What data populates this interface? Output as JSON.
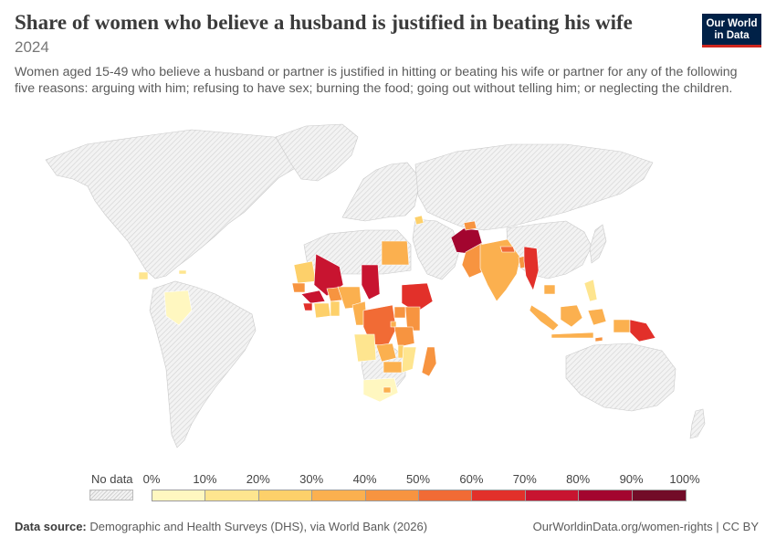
{
  "header": {
    "title": "Share of women who believe a husband is justified in beating his wife",
    "year": "2024",
    "subtitle": "Women aged 15-49 who believe a husband or partner is justified in hitting or beating his wife or partner for any of the following five reasons: arguing with him; refusing to have sex; burning the food; going out without telling him; or neglecting the children."
  },
  "logo": {
    "line1": "Our World",
    "line2": "in Data",
    "bg_color": "#002147",
    "accent_color": "#ce261e"
  },
  "legend": {
    "no_data_label": "No data",
    "ticks": [
      "0%",
      "10%",
      "20%",
      "30%",
      "40%",
      "50%",
      "60%",
      "70%",
      "80%",
      "90%",
      "100%"
    ],
    "colors": [
      "#fff7c0",
      "#fee58f",
      "#fdd06a",
      "#fbb04f",
      "#f79440",
      "#f16b35",
      "#e2302a",
      "#c81430",
      "#a3052f",
      "#720c28"
    ]
  },
  "footer": {
    "source_label": "Data source:",
    "source_text": "Demographic and Health Surveys (DHS), via World Bank (2026)",
    "right_text": "OurWorldinData.org/women-rights | CC BY"
  },
  "map_data": {
    "nodata_fill": "#f2f2f2",
    "regions_with_data": [
      {
        "area": "Afghanistan",
        "bin": 8
      },
      {
        "area": "Pakistan",
        "bin": 4
      },
      {
        "area": "India",
        "bin": 3
      },
      {
        "area": "Nepal",
        "bin": 5
      },
      {
        "area": "Bangladesh",
        "bin": 4
      },
      {
        "area": "Myanmar",
        "bin": 6
      },
      {
        "area": "Cambodia",
        "bin": 3
      },
      {
        "area": "Philippines",
        "bin": 1
      },
      {
        "area": "Indonesia",
        "bin": 3
      },
      {
        "area": "Timor-Leste",
        "bin": 4
      },
      {
        "area": "Papua New Guinea",
        "bin": 6
      },
      {
        "area": "Tajikistan",
        "bin": 4
      },
      {
        "area": "Egypt",
        "bin": 3
      },
      {
        "area": "Jordan",
        "bin": 2
      },
      {
        "area": "Mali",
        "bin": 7
      },
      {
        "area": "Chad",
        "bin": 7
      },
      {
        "area": "Mauritania",
        "bin": 2
      },
      {
        "area": "Senegal",
        "bin": 4
      },
      {
        "area": "Guinea",
        "bin": 7
      },
      {
        "area": "Sierra Leone",
        "bin": 6
      },
      {
        "area": "Burkina Faso",
        "bin": 4
      },
      {
        "area": "Nigeria",
        "bin": 3
      },
      {
        "area": "Ghana",
        "bin": 2
      },
      {
        "area": "Cote d'Ivoire",
        "bin": 2
      },
      {
        "area": "Cameroon",
        "bin": 3
      },
      {
        "area": "Ethiopia",
        "bin": 6
      },
      {
        "area": "Kenya",
        "bin": 4
      },
      {
        "area": "Tanzania",
        "bin": 4
      },
      {
        "area": "DR Congo",
        "bin": 5
      },
      {
        "area": "Uganda",
        "bin": 4
      },
      {
        "area": "Rwanda",
        "bin": 3
      },
      {
        "area": "Angola",
        "bin": 1
      },
      {
        "area": "Zambia",
        "bin": 3
      },
      {
        "area": "Malawi",
        "bin": 2
      },
      {
        "area": "Mozambique",
        "bin": 1
      },
      {
        "area": "Zimbabwe",
        "bin": 3
      },
      {
        "area": "Madagascar",
        "bin": 4
      },
      {
        "area": "South Africa",
        "bin": 0
      },
      {
        "area": "Lesotho",
        "bin": 3
      },
      {
        "area": "Colombia",
        "bin": 0
      },
      {
        "area": "Honduras",
        "bin": 1
      },
      {
        "area": "Haiti",
        "bin": 1
      }
    ]
  }
}
